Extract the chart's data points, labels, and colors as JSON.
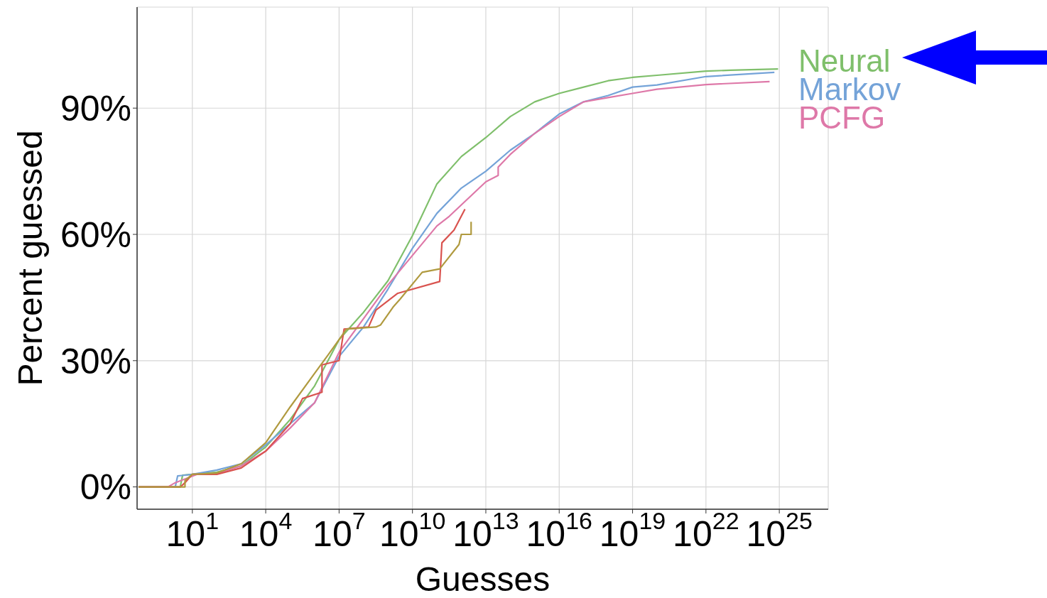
{
  "chart_data": {
    "type": "line",
    "xlabel": "Guesses",
    "ylabel": "Percent guessed",
    "log": "x",
    "grid": true,
    "line_style": "solid",
    "marker": "none",
    "xlim": [
      0.055,
      1e+27
    ],
    "ylim": [
      -5.3,
      114
    ],
    "xticks": [
      {
        "value": 10,
        "label": "10$^{1}$"
      },
      {
        "value": 10000.0,
        "label": "10$^{4}$"
      },
      {
        "value": 10000000.0,
        "label": "10$^{7}$"
      },
      {
        "value": 10000000000.0,
        "label": "10$^{10}$"
      },
      {
        "value": 10000000000000.0,
        "label": "10$^{13}$"
      },
      {
        "value": 1e+16,
        "label": "10$^{16}$"
      },
      {
        "value": 1e+19,
        "label": "10$^{19}$"
      },
      {
        "value": 1e+22,
        "label": "10$^{22}$"
      },
      {
        "value": 1e+25,
        "label": "10$^{25}$"
      }
    ],
    "yticks": [
      {
        "value": 0,
        "label": "0%"
      },
      {
        "value": 30,
        "label": "30%"
      },
      {
        "value": 60,
        "label": "60%"
      },
      {
        "value": 90,
        "label": "90%"
      }
    ],
    "series": [
      {
        "name": "Neural",
        "color": "#7fbf6b",
        "x": [
          0.063,
          3.2,
          4,
          10,
          100,
          1000,
          10000.0,
          100000.0,
          1000000.0,
          10000000.0,
          100000000.0,
          1000000000.0,
          10000000000.0,
          100000000000.0,
          1000000000000.0,
          10000000000000.0,
          100000000000000.0,
          1000000000000000.0,
          1e+16,
          1e+17,
          1e+18,
          1e+19,
          1e+20,
          1e+22,
          1e+23,
          8.9e+24
        ],
        "values": [
          0,
          0,
          2.8,
          3,
          3.5,
          5,
          9.5,
          16,
          24,
          35,
          41.5,
          49,
          59.7,
          72,
          78.5,
          83,
          88,
          91.5,
          93.5,
          95,
          96.5,
          97.3,
          97.8,
          98.8,
          99,
          99.3
        ]
      },
      {
        "name": "Markov",
        "color": "#74a3d8",
        "x": [
          0.063,
          2,
          2.5,
          10,
          100,
          1000,
          10000.0,
          100000.0,
          1000000.0,
          10000000.0,
          100000000.0,
          1000000000.0,
          10000000000.0,
          100000000000.0,
          1000000000000.0,
          10000000000000.0,
          100000000000000.0,
          1000000000000000.0,
          1e+16,
          1e+17,
          1e+18,
          1e+19,
          1e+20,
          1e+22,
          6.3e+24
        ],
        "values": [
          0,
          0,
          2.6,
          3,
          4,
          5.5,
          10,
          15,
          20,
          31,
          38,
          47,
          56.7,
          65,
          71,
          75,
          80,
          84,
          88.6,
          91.5,
          93,
          95,
          95.5,
          97.5,
          98.5
        ]
      },
      {
        "name": "PCFG",
        "color": "#de78a8",
        "x": [
          0.063,
          1,
          2,
          16,
          100,
          1000,
          10000.0,
          100000.0,
          1000000.0,
          10000000.0,
          100000000.0,
          1000000000.0,
          10000000000.0,
          100000000000.0,
          320000000000.0,
          10000000000000.0,
          32000000000000.0,
          32000000000000.0,
          100000000000000.0,
          1000000000000000.0,
          1e+16,
          1e+17,
          1e+18,
          1e+19,
          1e+20,
          1e+22,
          4e+24
        ],
        "values": [
          0,
          0,
          1,
          3,
          3.2,
          5,
          8.5,
          14,
          20,
          32,
          40,
          48,
          55,
          62,
          64.3,
          72.5,
          74,
          76,
          79,
          84,
          88,
          91.5,
          92.5,
          93.5,
          94.5,
          95.6,
          96.3
        ]
      },
      {
        "color": "#d9534f",
        "x": [
          0.063,
          3.2,
          5,
          10,
          100,
          1000,
          10000.0,
          100000.0,
          320000.0,
          2000000.0,
          2000000.0,
          10000000.0,
          16000000.0,
          160000000.0,
          320000000.0,
          2500000000.0,
          130000000000.0,
          160000000000.0,
          500000000000.0,
          1400000000000.0
        ],
        "values": [
          0,
          0,
          1,
          3,
          3,
          4.5,
          8.5,
          15,
          21,
          22.5,
          29,
          30,
          37.5,
          38,
          42,
          46,
          48.8,
          58,
          61,
          66
        ]
      },
      {
        "color": "#b09a3f",
        "x": [
          0.063,
          5,
          5,
          10,
          100,
          1000,
          10000.0,
          100000.0,
          1000000.0,
          3200000.0,
          10000000.0,
          20000000.0,
          320000000.0,
          500000000.0,
          1600000000.0,
          3200000000.0,
          25000000000.0,
          130000000000.0,
          800000000000.0,
          1000000000000.0,
          2500000000000.0,
          2500000000000.0
        ],
        "values": [
          0,
          0,
          1.5,
          3,
          3.3,
          5.5,
          10.5,
          19,
          27,
          31,
          35,
          37.5,
          38,
          38.5,
          42.7,
          44.7,
          51,
          51.8,
          57.6,
          60,
          60,
          63
        ]
      }
    ]
  }
}
